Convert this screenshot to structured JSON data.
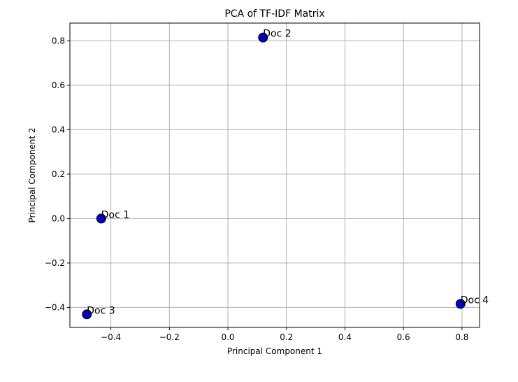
{
  "chart_data": {
    "type": "scatter",
    "title": "PCA of TF-IDF Matrix",
    "xlabel": "Principal Component 1",
    "ylabel": "Principal Component 2",
    "xlim": [
      -0.54,
      0.86
    ],
    "ylim": [
      -0.49,
      0.88
    ],
    "grid": true,
    "marker_color": "#0000cc",
    "marker_edge_color": "#000000",
    "xticks": [
      -0.4,
      -0.2,
      0.0,
      0.2,
      0.4,
      0.6,
      0.8
    ],
    "xtick_labels": [
      "−0.4",
      "−0.2",
      "0.0",
      "0.2",
      "0.4",
      "0.6",
      "0.8"
    ],
    "yticks": [
      -0.4,
      -0.2,
      0.0,
      0.2,
      0.4,
      0.6,
      0.8
    ],
    "ytick_labels": [
      "−0.4",
      "−0.2",
      "0.0",
      "0.2",
      "0.4",
      "0.6",
      "0.8"
    ],
    "points": [
      {
        "label": "Doc 1",
        "x": -0.433,
        "y": 0.0
      },
      {
        "label": "Doc 2",
        "x": 0.12,
        "y": 0.815
      },
      {
        "label": "Doc 3",
        "x": -0.482,
        "y": -0.431
      },
      {
        "label": "Doc 4",
        "x": 0.795,
        "y": -0.384
      }
    ]
  }
}
